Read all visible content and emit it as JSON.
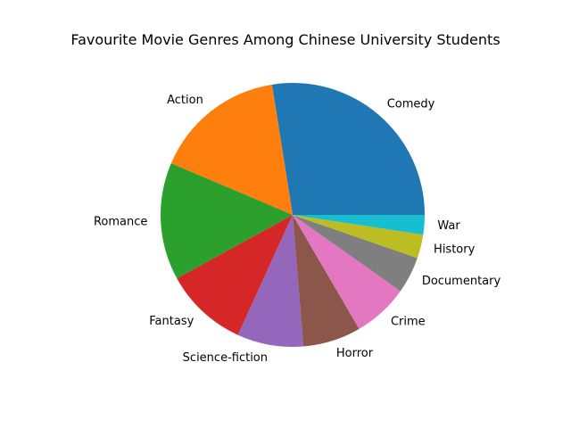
{
  "chart_data": {
    "type": "pie",
    "title": "Favourite Movie Genres Among Chinese University Students",
    "start_angle_deg": 0,
    "direction": "counterclockwise",
    "slices": [
      {
        "label": "Comedy",
        "value": 27.5,
        "color": "#1f77b4"
      },
      {
        "label": "Action",
        "value": 16.1,
        "color": "#ff7f0e"
      },
      {
        "label": "Romance",
        "value": 14.4,
        "color": "#2ca02c"
      },
      {
        "label": "Fantasy",
        "value": 10.2,
        "color": "#d62728"
      },
      {
        "label": "Science-fiction",
        "value": 8.1,
        "color": "#9467bd"
      },
      {
        "label": "Horror",
        "value": 7.1,
        "color": "#8c564b"
      },
      {
        "label": "Crime",
        "value": 6.8,
        "color": "#e377c2"
      },
      {
        "label": "Documentary",
        "value": 4.5,
        "color": "#7f7f7f"
      },
      {
        "label": "History",
        "value": 2.9,
        "color": "#bcbd22"
      },
      {
        "label": "War",
        "value": 2.4,
        "color": "#17becf"
      }
    ]
  }
}
